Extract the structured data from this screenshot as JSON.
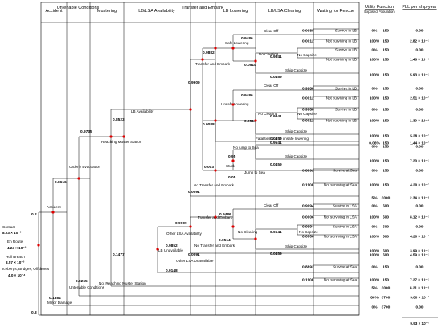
{
  "headers": {
    "accident": "Accident",
    "untenable": "Untenable Conditions",
    "mustering": "Mustering",
    "lblsa": "LB/LSA Availability",
    "transfer": "Transfer and Embark",
    "lowering": "LB Lowering",
    "clearing": "LB/LSA Clearing",
    "waiting": "Waiting for Rescue",
    "utility": "Utility Function",
    "exposed": "Exposed Population",
    "pll": "PLL per ship-year"
  },
  "initiators": {
    "contact_label": "Contact",
    "contact_value": "8.23 × 10⁻³",
    "enroute_label": "En Route",
    "enroute_value": "4.24 × 10⁻³",
    "hull_label": "Hull Breach",
    "hull_value": "8.57 × 10⁻³",
    "ice_label": "Icebergs, Bridges, Offshores",
    "ice_value": "4.0 × 10⁻⁴"
  },
  "branches": {
    "accident_p": "0.2",
    "accident": "Accident",
    "minor_p": "0.1384",
    "minor": "Minor Damage",
    "minor_root": "0.8",
    "orderly_p": "0.8616",
    "orderly": "Orderly Evacuation",
    "untenable_p": "0.0265",
    "untenable": "Untenable Conditions",
    "reaching_p": "0.9735",
    "reaching": "Reaching Muster Station",
    "notreaching": "Not Reaching Muster Station",
    "lbavail_p": "0.8523",
    "lbavail": "LB Availability",
    "lbunavail_p": "0.1477",
    "lbunav_inner_p": "0.9852",
    "lbunav_inner": "LB Unavailable",
    "lsaunav_p": "0.0148",
    "lsaunav": "Other LSA Unavailable",
    "lsaavail_p": "0.9909",
    "lsaavail": "Other LSA Availability",
    "lsanotrans_p": "0.0091",
    "lsanotrans": "No Transfer and Embark",
    "lsatrans": "Transfer and Embark",
    "te_p": "0.9909",
    "notrans_p": "0.0091",
    "notrans": "No Transfer and Embark",
    "te_upper_p": "0.9882",
    "te_upper": "Transfer and Embark",
    "unsafe_p": "0.0088",
    "unsafe": "Unsafe Lowering",
    "safe_p": "0.9486",
    "safe": "Safe Lowering",
    "stuck_p": "0.003",
    "stuck": "Stuck",
    "nojump_p": "0.95",
    "nojump": "No jump to Sea",
    "jump_p": "0.05",
    "jump": "Jump to Sea",
    "fatal": "Fatalities due to unsafe lowering",
    "clearoff": "Clear Off",
    "noclear": "No Clearing",
    "nocapsize": "No Capsize",
    "shipcapsize": "Ship Capsize"
  },
  "probs": {
    "a_9486": "0.9486",
    "a_0514": "0.0514",
    "a_9541": "0.9541",
    "a_0459": "0.0459",
    "b_9486": "0.9486",
    "b_0514": "0.0514",
    "b_9541": "0.9541",
    "b_0459": "0.0459",
    "c_9541": "0.9541",
    "c_0459": "0.0459",
    "d_9486": "0.9486",
    "d_0514": "0.0514",
    "d_9541": "0.9541",
    "d_0459": "0.0459"
  },
  "outcomes": [
    {
      "cp": "0.9988",
      "ev": "Survive in LB",
      "u": "0%",
      "p": "150",
      "pll": "0.00"
    },
    {
      "cp": "0.0012",
      "ev": "Not surviving in LB",
      "u": "100%",
      "p": "150",
      "pll": "2.82 × 10⁻⁵"
    },
    {
      "cp": "",
      "ev": "Survive in LB",
      "u": "0%",
      "p": "150",
      "pll": "0.00"
    },
    {
      "cp": "",
      "ev": "Not surviving in LB",
      "u": "100%",
      "p": "150",
      "pll": "1.46 × 10⁻⁶"
    },
    {
      "cp": "",
      "ev": "",
      "u": "100%",
      "p": "150",
      "pll": "5.93 × 10⁻⁵"
    },
    {
      "cp": "0.9988",
      "ev": "Survive in LB",
      "u": "0%",
      "p": "150",
      "pll": "0.00"
    },
    {
      "cp": "0.0012",
      "ev": "Not surviving in LB",
      "u": "100%",
      "p": "150",
      "pll": "2.51 × 10⁻⁷"
    },
    {
      "cp": "0.9988",
      "ev": "Survive in LB",
      "u": "0%",
      "p": "150",
      "pll": "0.00"
    },
    {
      "cp": "0.0012",
      "ev": "Not surviving in LB",
      "u": "100%",
      "p": "150",
      "pll": "1.30 × 10⁻⁸"
    },
    {
      "cp": "",
      "ev": "",
      "u": "100%",
      "p": "150",
      "pll": "5.28 × 10⁻⁷"
    },
    {
      "cp": "",
      "ev": "",
      "u": "0.06%",
      "p": "150",
      "pll": "1.44 × 10⁻⁷"
    },
    {
      "cp": "",
      "ev": "",
      "u": "0%",
      "p": "150",
      "pll": "0.00"
    },
    {
      "cp": "",
      "ev": "",
      "u": "100%",
      "p": "150",
      "pll": "7.20 × 10⁻⁵"
    },
    {
      "cp": "0.8892",
      "ev": "Survive at Sea",
      "u": "0%",
      "p": "150",
      "pll": "0.00"
    },
    {
      "cp": "0.1108",
      "ev": "Not surviving at Sea",
      "u": "100%",
      "p": "150",
      "pll": "4.20 × 10⁻⁷"
    },
    {
      "cp": "",
      "ev": "",
      "u": "5%",
      "p": "3000",
      "pll": "2.34 × 10⁻⁴"
    },
    {
      "cp": "0.9994",
      "ev": "Survive in LSA",
      "u": "0%",
      "p": "500",
      "pll": "0.00"
    },
    {
      "cp": "0.0006",
      "ev": "Not surviving in LSA",
      "u": "100%",
      "p": "500",
      "pll": "8.12 × 10⁻⁶"
    },
    {
      "cp": "0.9994",
      "ev": "Survive in LSA",
      "u": "0%",
      "p": "500",
      "pll": "0.00"
    },
    {
      "cp": "0.0006",
      "ev": "Not surviving in LSA",
      "u": "100%",
      "p": "500",
      "pll": "4.20 × 10⁻⁷"
    },
    {
      "cp": "",
      "ev": "",
      "u": "100%",
      "p": "500",
      "pll": "3.99 × 10⁻⁵"
    },
    {
      "cp": "",
      "ev": "",
      "u": "100%",
      "p": "500",
      "pll": "4.59 × 10⁻⁵"
    },
    {
      "cp": "0.8892",
      "ev": "Survive at Sea",
      "u": "0%",
      "p": "150",
      "pll": "0.00"
    },
    {
      "cp": "0.1108",
      "ev": "Not surviving at Sea",
      "u": "100%",
      "p": "150",
      "pll": "7.27 × 10⁻⁶"
    },
    {
      "cp": "",
      "ev": "",
      "u": "5%",
      "p": "3000",
      "pll": "8.21 × 10⁻⁴"
    },
    {
      "cp": "",
      "ev": "",
      "u": "80%",
      "p": "3700",
      "pll": "9.80 × 10⁻²"
    },
    {
      "cp": "",
      "ev": "",
      "u": "0%",
      "p": "3700",
      "pll": "0.00"
    }
  ],
  "total": "9.93 × 10⁻²"
}
